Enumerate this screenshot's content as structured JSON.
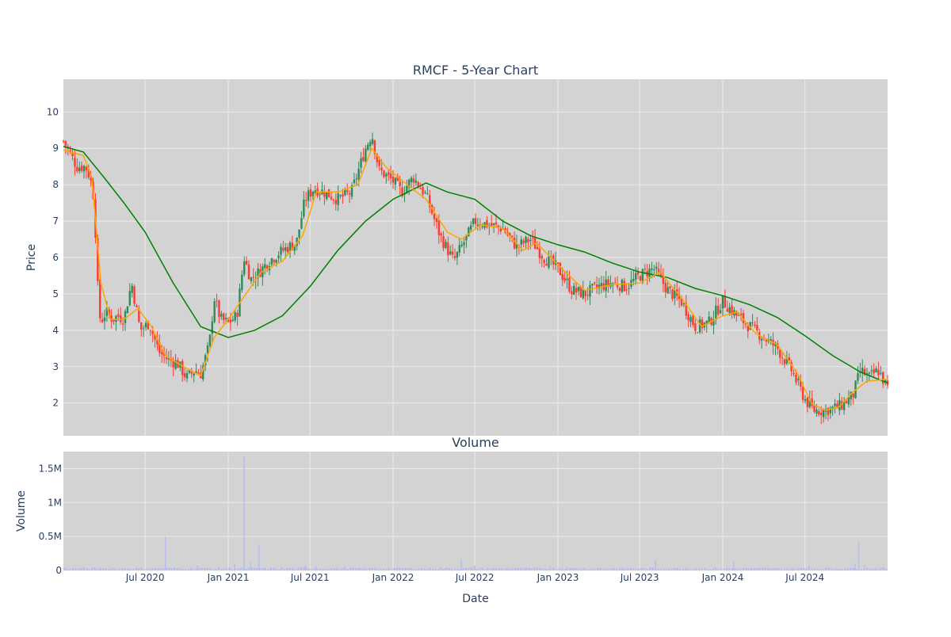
{
  "chart_data": [
    {
      "type": "candlestick",
      "title": "RMCF - 5-Year Chart",
      "ylabel": "Price",
      "xlabel": "",
      "ylim": [
        1.1,
        10.9
      ],
      "yticks": [
        2,
        3,
        4,
        5,
        6,
        7,
        8,
        9,
        10
      ],
      "grid": true,
      "legend": "none",
      "colors": {
        "plot_bg": "#d3d3d3",
        "grid": "#ebebeb",
        "up": "#2e8b57",
        "down": "#ff3b30",
        "ma_short": "#ffa500",
        "ma_long": "#008000",
        "text": "#2a3f5f"
      },
      "series": [
        {
          "kind": "price_close_approx",
          "points": [
            [
              "2020-01-02",
              9.2
            ],
            [
              "2020-01-15",
              8.9
            ],
            [
              "2020-02-01",
              8.5
            ],
            [
              "2020-02-20",
              8.5
            ],
            [
              "2020-03-01",
              8.2
            ],
            [
              "2020-03-10",
              7.6
            ],
            [
              "2020-03-18",
              5.2
            ],
            [
              "2020-03-24",
              4.2
            ],
            [
              "2020-04-05",
              4.5
            ],
            [
              "2020-04-20",
              4.3
            ],
            [
              "2020-05-01",
              4.4
            ],
            [
              "2020-05-15",
              4.3
            ],
            [
              "2020-06-01",
              5.3
            ],
            [
              "2020-06-20",
              4.0
            ],
            [
              "2020-07-10",
              4.2
            ],
            [
              "2020-08-01",
              3.4
            ],
            [
              "2020-08-20",
              3.2
            ],
            [
              "2020-09-10",
              3.1
            ],
            [
              "2020-10-01",
              2.7
            ],
            [
              "2020-10-20",
              2.9
            ],
            [
              "2020-11-01",
              2.8
            ],
            [
              "2020-11-20",
              3.6
            ],
            [
              "2020-12-01",
              4.9
            ],
            [
              "2020-12-15",
              4.3
            ],
            [
              "2021-01-01",
              4.2
            ],
            [
              "2021-01-20",
              4.4
            ],
            [
              "2021-02-05",
              6.0
            ],
            [
              "2021-02-20",
              5.4
            ],
            [
              "2021-03-10",
              5.6
            ],
            [
              "2021-04-01",
              5.9
            ],
            [
              "2021-04-20",
              6.1
            ],
            [
              "2021-05-15",
              6.3
            ],
            [
              "2021-06-01",
              6.4
            ],
            [
              "2021-06-20",
              7.6
            ],
            [
              "2021-07-10",
              7.9
            ],
            [
              "2021-08-01",
              7.8
            ],
            [
              "2021-09-01",
              7.6
            ],
            [
              "2021-10-01",
              7.8
            ],
            [
              "2021-11-01",
              9.0
            ],
            [
              "2021-11-15",
              9.4
            ],
            [
              "2021-12-01",
              8.4
            ],
            [
              "2022-01-01",
              8.1
            ],
            [
              "2022-01-20",
              7.8
            ],
            [
              "2022-02-15",
              8.2
            ],
            [
              "2022-03-15",
              7.7
            ],
            [
              "2022-04-15",
              6.6
            ],
            [
              "2022-05-15",
              5.9
            ],
            [
              "2022-06-15",
              6.6
            ],
            [
              "2022-07-01",
              7.0
            ],
            [
              "2022-08-01",
              6.9
            ],
            [
              "2022-09-01",
              6.8
            ],
            [
              "2022-10-01",
              6.3
            ],
            [
              "2022-11-01",
              6.5
            ],
            [
              "2022-12-01",
              6.0
            ],
            [
              "2023-01-01",
              5.7
            ],
            [
              "2023-02-01",
              5.1
            ],
            [
              "2023-03-01",
              5.0
            ],
            [
              "2023-04-01",
              5.2
            ],
            [
              "2023-05-01",
              5.3
            ],
            [
              "2023-06-01",
              5.2
            ],
            [
              "2023-07-01",
              5.5
            ],
            [
              "2023-08-01",
              5.7
            ],
            [
              "2023-09-01",
              5.1
            ],
            [
              "2023-10-01",
              4.8
            ],
            [
              "2023-11-01",
              4.1
            ],
            [
              "2023-12-01",
              4.2
            ],
            [
              "2024-01-01",
              4.8
            ],
            [
              "2024-02-01",
              4.4
            ],
            [
              "2024-03-01",
              4.1
            ],
            [
              "2024-04-01",
              3.8
            ],
            [
              "2024-05-01",
              3.5
            ],
            [
              "2024-06-01",
              2.9
            ],
            [
              "2024-07-01",
              2.1
            ],
            [
              "2024-07-20",
              1.8
            ],
            [
              "2024-08-15",
              1.8
            ],
            [
              "2024-09-15",
              1.9
            ],
            [
              "2024-10-15",
              2.2
            ],
            [
              "2024-11-01",
              2.9
            ],
            [
              "2024-11-20",
              2.7
            ],
            [
              "2024-12-10",
              2.9
            ],
            [
              "2024-12-31",
              2.4
            ]
          ]
        },
        {
          "kind": "ma_short",
          "points": [
            [
              "2020-01-02",
              8.95
            ],
            [
              "2020-02-15",
              8.8
            ],
            [
              "2020-03-05",
              8.2
            ],
            [
              "2020-03-25",
              5.3
            ],
            [
              "2020-04-15",
              4.3
            ],
            [
              "2020-05-15",
              4.3
            ],
            [
              "2020-06-15",
              4.6
            ],
            [
              "2020-07-15",
              4.1
            ],
            [
              "2020-08-15",
              3.3
            ],
            [
              "2020-10-01",
              2.95
            ],
            [
              "2020-11-01",
              2.75
            ],
            [
              "2020-12-01",
              3.8
            ],
            [
              "2021-01-01",
              4.3
            ],
            [
              "2021-02-15",
              5.1
            ],
            [
              "2021-03-15",
              5.6
            ],
            [
              "2021-05-01",
              5.9
            ],
            [
              "2021-06-15",
              6.6
            ],
            [
              "2021-07-15",
              7.8
            ],
            [
              "2021-09-01",
              7.8
            ],
            [
              "2021-10-15",
              8.0
            ],
            [
              "2021-11-15",
              9.0
            ],
            [
              "2021-12-15",
              8.5
            ],
            [
              "2022-02-01",
              8.0
            ],
            [
              "2022-03-15",
              7.6
            ],
            [
              "2022-05-01",
              6.7
            ],
            [
              "2022-06-01",
              6.5
            ],
            [
              "2022-07-15",
              6.9
            ],
            [
              "2022-09-01",
              6.8
            ],
            [
              "2022-10-15",
              6.2
            ],
            [
              "2022-11-15",
              6.4
            ],
            [
              "2023-01-01",
              5.8
            ],
            [
              "2023-03-01",
              5.1
            ],
            [
              "2023-05-01",
              5.25
            ],
            [
              "2023-07-01",
              5.3
            ],
            [
              "2023-08-15",
              5.6
            ],
            [
              "2023-10-01",
              4.9
            ],
            [
              "2023-11-15",
              4.1
            ],
            [
              "2024-01-01",
              4.4
            ],
            [
              "2024-02-01",
              4.5
            ],
            [
              "2024-03-15",
              3.9
            ],
            [
              "2024-05-01",
              3.6
            ],
            [
              "2024-06-15",
              2.8
            ],
            [
              "2024-07-15",
              2.0
            ],
            [
              "2024-08-15",
              1.8
            ],
            [
              "2024-09-15",
              1.9
            ],
            [
              "2024-10-15",
              2.3
            ],
            [
              "2024-11-15",
              2.6
            ],
            [
              "2024-12-31",
              2.65
            ]
          ]
        },
        {
          "kind": "ma_long",
          "points": [
            [
              "2020-01-02",
              9.05
            ],
            [
              "2020-02-15",
              8.9
            ],
            [
              "2020-04-01",
              8.2
            ],
            [
              "2020-05-15",
              7.5
            ],
            [
              "2020-07-01",
              6.7
            ],
            [
              "2020-09-01",
              5.3
            ],
            [
              "2020-11-01",
              4.1
            ],
            [
              "2021-01-01",
              3.8
            ],
            [
              "2021-03-01",
              4.0
            ],
            [
              "2021-05-01",
              4.4
            ],
            [
              "2021-07-01",
              5.2
            ],
            [
              "2021-09-01",
              6.2
            ],
            [
              "2021-11-01",
              7.0
            ],
            [
              "2022-01-01",
              7.6
            ],
            [
              "2022-03-15",
              8.05
            ],
            [
              "2022-05-01",
              7.8
            ],
            [
              "2022-07-01",
              7.6
            ],
            [
              "2022-09-01",
              7.0
            ],
            [
              "2022-11-01",
              6.6
            ],
            [
              "2023-01-01",
              6.35
            ],
            [
              "2023-03-01",
              6.15
            ],
            [
              "2023-05-01",
              5.85
            ],
            [
              "2023-07-01",
              5.6
            ],
            [
              "2023-09-01",
              5.45
            ],
            [
              "2023-11-01",
              5.15
            ],
            [
              "2024-01-01",
              4.95
            ],
            [
              "2024-03-01",
              4.7
            ],
            [
              "2024-05-01",
              4.35
            ],
            [
              "2024-07-01",
              3.85
            ],
            [
              "2024-09-01",
              3.3
            ],
            [
              "2024-11-01",
              2.85
            ],
            [
              "2024-12-31",
              2.55
            ]
          ]
        }
      ]
    },
    {
      "type": "bar",
      "title": "Volume",
      "ylabel": "Volume",
      "xlabel": "Date",
      "ylim": [
        0,
        1750000
      ],
      "yticks": [
        {
          "value": 0,
          "label": "0"
        },
        {
          "value": 500000,
          "label": "0.5M"
        },
        {
          "value": 1000000,
          "label": "1M"
        },
        {
          "value": 1500000,
          "label": "1.5M"
        }
      ],
      "xlim": [
        "2020-01-02",
        "2024-12-31"
      ],
      "xticks": [
        {
          "date": "2020-07-01",
          "label": "Jul 2020"
        },
        {
          "date": "2021-01-01",
          "label": "Jan 2021"
        },
        {
          "date": "2021-07-01",
          "label": "Jul 2021"
        },
        {
          "date": "2022-01-01",
          "label": "Jan 2022"
        },
        {
          "date": "2022-07-01",
          "label": "Jul 2022"
        },
        {
          "date": "2023-01-01",
          "label": "Jan 2023"
        },
        {
          "date": "2023-07-01",
          "label": "Jul 2023"
        },
        {
          "date": "2024-01-01",
          "label": "Jan 2024"
        },
        {
          "date": "2024-07-01",
          "label": "Jul 2024"
        }
      ],
      "color": "#b9bcee",
      "baseline": 30000,
      "spikes": [
        [
          "2020-08-15",
          500000
        ],
        [
          "2020-10-25",
          70000
        ],
        [
          "2021-01-15",
          90000
        ],
        [
          "2021-02-05",
          1680000
        ],
        [
          "2021-02-20",
          120000
        ],
        [
          "2021-03-10",
          380000
        ],
        [
          "2021-06-20",
          70000
        ],
        [
          "2021-07-15",
          60000
        ],
        [
          "2022-06-01",
          160000
        ],
        [
          "2022-07-01",
          70000
        ],
        [
          "2022-12-15",
          70000
        ],
        [
          "2023-01-20",
          60000
        ],
        [
          "2023-08-05",
          150000
        ],
        [
          "2024-01-25",
          120000
        ],
        [
          "2024-07-10",
          70000
        ],
        [
          "2024-10-20",
          100000
        ],
        [
          "2024-10-28",
          420000
        ],
        [
          "2024-11-10",
          80000
        ]
      ]
    }
  ]
}
